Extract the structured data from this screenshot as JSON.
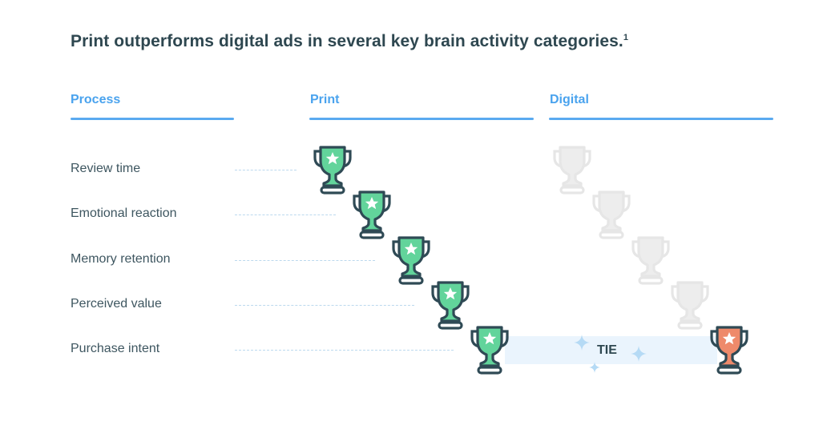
{
  "title": "Print outperforms digital ads in several key brain activity categories.",
  "title_footnote": "1",
  "columns": {
    "process": "Process",
    "print": "Print",
    "digital": "Digital"
  },
  "rows": [
    {
      "label": "Review time",
      "winner": "print"
    },
    {
      "label": "Emotional reaction",
      "winner": "print"
    },
    {
      "label": "Memory retention",
      "winner": "print"
    },
    {
      "label": "Perceived value",
      "winner": "print"
    },
    {
      "label": "Purchase intent",
      "winner": "tie"
    }
  ],
  "tie_label": "TIE",
  "colors": {
    "print_trophy": "#62d49b",
    "digital_trophy": "#ee8a6b",
    "inactive_trophy": "#ededed",
    "outline": "#2f4a55",
    "accent": "#4aa3ee",
    "tie_band": "#eaf4fd"
  }
}
